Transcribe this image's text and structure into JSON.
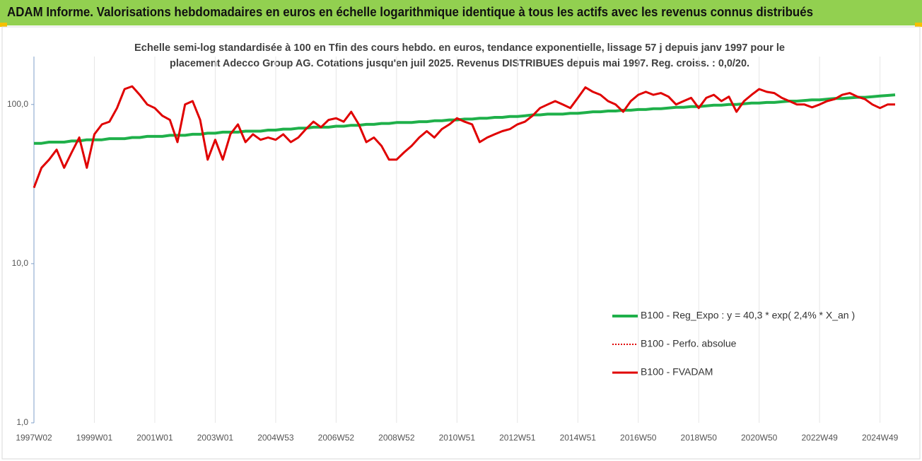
{
  "chart_data": {
    "type": "line",
    "title": "ADAM Informe. Valorisations hebdomadaires en euros en échelle logarithmique identique à tous les actifs avec les revenus connus distribués",
    "subtitle": [
      "Echelle semi-log standardisée à 100 en Tfin des cours hebdo. en euros, tendance exponentielle, lissage 57 j depuis janv 1997 pour le",
      "placement Adecco Group AG. Cotations jusqu'en juil 2025. Revenus DISTRIBUES depuis mai 1997. Reg. croiss. : 0,0/20."
    ],
    "categories": [
      "1997W02",
      null,
      null,
      null,
      null,
      null,
      null,
      null,
      "1999W01",
      null,
      null,
      null,
      null,
      null,
      null,
      null,
      "2001W01",
      null,
      null,
      null,
      null,
      null,
      null,
      null,
      "2003W01",
      null,
      null,
      null,
      null,
      null,
      null,
      null,
      "2004W53",
      null,
      null,
      null,
      null,
      null,
      null,
      null,
      "2006W52",
      null,
      null,
      null,
      null,
      null,
      null,
      null,
      "2008W52",
      null,
      null,
      null,
      null,
      null,
      null,
      null,
      "2010W51",
      null,
      null,
      null,
      null,
      null,
      null,
      null,
      "2012W51",
      null,
      null,
      null,
      null,
      null,
      null,
      null,
      "2014W51",
      null,
      null,
      null,
      null,
      null,
      null,
      null,
      "2016W50",
      null,
      null,
      null,
      null,
      null,
      null,
      null,
      "2018W50",
      null,
      null,
      null,
      null,
      null,
      null,
      null,
      "2020W50",
      null,
      null,
      null,
      null,
      null,
      null,
      null,
      "2022W49",
      null,
      null,
      null,
      null,
      null,
      null,
      null,
      "2024W49",
      null,
      null
    ],
    "series": [
      {
        "name": "B100 - Reg_Expo : y = 40,3 * exp( 2,4% *  X_an )",
        "color": "#1fb04a",
        "style": "solid",
        "width": 4,
        "values": [
          57,
          57,
          58,
          58,
          58,
          59,
          59,
          60,
          60,
          60,
          61,
          61,
          61,
          62,
          62,
          63,
          63,
          63,
          64,
          64,
          64,
          65,
          65,
          66,
          66,
          67,
          67,
          67,
          68,
          68,
          68,
          69,
          69,
          70,
          70,
          71,
          71,
          72,
          72,
          72,
          73,
          73,
          74,
          74,
          75,
          75,
          76,
          76,
          77,
          77,
          77,
          78,
          78,
          79,
          79,
          80,
          80,
          81,
          81,
          82,
          82,
          83,
          83,
          84,
          84,
          85,
          86,
          86,
          87,
          87,
          87,
          88,
          88,
          89,
          90,
          90,
          91,
          91,
          92,
          92,
          93,
          93,
          94,
          94,
          95,
          96,
          96,
          97,
          97,
          98,
          99,
          99,
          100,
          100,
          101,
          102,
          102,
          103,
          103,
          104,
          105,
          105,
          106,
          107,
          107,
          108,
          109,
          109,
          110,
          111,
          111,
          112,
          113,
          114,
          115
        ]
      },
      {
        "name": "B100 - Perfo. absolue",
        "color": "#e00000",
        "style": "dotted",
        "width": 2,
        "values": [
          30,
          40,
          45,
          52,
          40,
          50,
          62,
          40,
          65,
          75,
          78,
          95,
          125,
          130,
          115,
          100,
          95,
          85,
          80,
          58,
          100,
          105,
          80,
          45,
          60,
          45,
          65,
          75,
          58,
          65,
          60,
          62,
          60,
          65,
          58,
          62,
          70,
          78,
          72,
          80,
          82,
          78,
          90,
          75,
          58,
          62,
          55,
          45,
          45,
          50,
          55,
          62,
          68,
          62,
          70,
          75,
          82,
          78,
          75,
          58,
          62,
          65,
          68,
          70,
          75,
          78,
          85,
          95,
          100,
          105,
          100,
          95,
          110,
          128,
          120,
          115,
          105,
          100,
          90,
          105,
          115,
          120,
          115,
          118,
          112,
          100,
          105,
          110,
          95,
          110,
          115,
          105,
          112,
          90,
          105,
          115,
          125,
          120,
          118,
          110,
          105,
          100,
          100,
          96,
          100,
          105,
          108,
          115,
          118,
          112,
          108,
          100,
          95,
          100,
          100
        ]
      },
      {
        "name": "B100 - FVADAM",
        "color": "#e00000",
        "style": "solid",
        "width": 3,
        "values": [
          30,
          40,
          45,
          52,
          40,
          50,
          62,
          40,
          65,
          75,
          78,
          95,
          125,
          130,
          115,
          100,
          95,
          85,
          80,
          58,
          100,
          105,
          80,
          45,
          60,
          45,
          65,
          75,
          58,
          65,
          60,
          62,
          60,
          65,
          58,
          62,
          70,
          78,
          72,
          80,
          82,
          78,
          90,
          75,
          58,
          62,
          55,
          45,
          45,
          50,
          55,
          62,
          68,
          62,
          70,
          75,
          82,
          78,
          75,
          58,
          62,
          65,
          68,
          70,
          75,
          78,
          85,
          95,
          100,
          105,
          100,
          95,
          110,
          128,
          120,
          115,
          105,
          100,
          90,
          105,
          115,
          120,
          115,
          118,
          112,
          100,
          105,
          110,
          95,
          110,
          115,
          105,
          112,
          90,
          105,
          115,
          125,
          120,
          118,
          110,
          105,
          100,
          100,
          96,
          100,
          105,
          108,
          115,
          118,
          112,
          108,
          100,
          95,
          100,
          100
        ]
      }
    ],
    "ylim": [
      1,
      200
    ],
    "yticks": [
      {
        "value": 1,
        "label": "1,0"
      },
      {
        "value": 10,
        "label": "10,0"
      },
      {
        "value": 100,
        "label": "100,0"
      }
    ],
    "log_scale": true,
    "grid": true,
    "legend": "lower right"
  }
}
